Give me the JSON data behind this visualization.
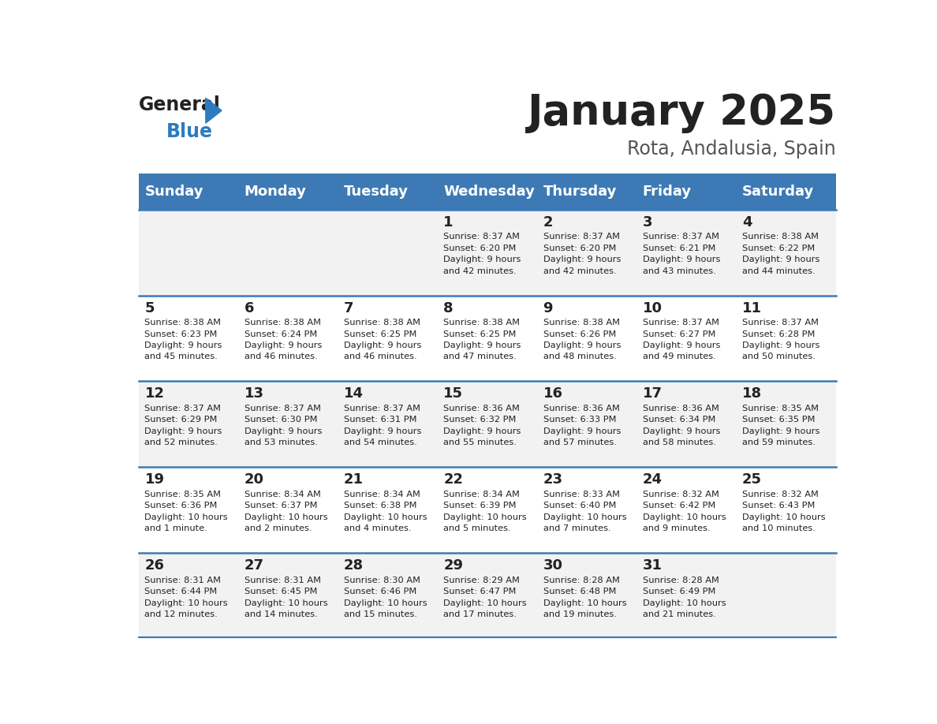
{
  "title": "January 2025",
  "subtitle": "Rota, Andalusia, Spain",
  "days_of_week": [
    "Sunday",
    "Monday",
    "Tuesday",
    "Wednesday",
    "Thursday",
    "Friday",
    "Saturday"
  ],
  "header_bg": "#3d7ab5",
  "header_text_color": "#ffffff",
  "row_bg_odd": "#f2f2f2",
  "row_bg_even": "#ffffff",
  "divider_color": "#3d7ab5",
  "text_color": "#222222",
  "title_color": "#222222",
  "subtitle_color": "#555555",
  "logo_general_color": "#222222",
  "logo_blue_color": "#2d7bbf",
  "calendar": [
    [
      {
        "day": null,
        "info": null
      },
      {
        "day": null,
        "info": null
      },
      {
        "day": null,
        "info": null
      },
      {
        "day": 1,
        "info": "Sunrise: 8:37 AM\nSunset: 6:20 PM\nDaylight: 9 hours\nand 42 minutes."
      },
      {
        "day": 2,
        "info": "Sunrise: 8:37 AM\nSunset: 6:20 PM\nDaylight: 9 hours\nand 42 minutes."
      },
      {
        "day": 3,
        "info": "Sunrise: 8:37 AM\nSunset: 6:21 PM\nDaylight: 9 hours\nand 43 minutes."
      },
      {
        "day": 4,
        "info": "Sunrise: 8:38 AM\nSunset: 6:22 PM\nDaylight: 9 hours\nand 44 minutes."
      }
    ],
    [
      {
        "day": 5,
        "info": "Sunrise: 8:38 AM\nSunset: 6:23 PM\nDaylight: 9 hours\nand 45 minutes."
      },
      {
        "day": 6,
        "info": "Sunrise: 8:38 AM\nSunset: 6:24 PM\nDaylight: 9 hours\nand 46 minutes."
      },
      {
        "day": 7,
        "info": "Sunrise: 8:38 AM\nSunset: 6:25 PM\nDaylight: 9 hours\nand 46 minutes."
      },
      {
        "day": 8,
        "info": "Sunrise: 8:38 AM\nSunset: 6:25 PM\nDaylight: 9 hours\nand 47 minutes."
      },
      {
        "day": 9,
        "info": "Sunrise: 8:38 AM\nSunset: 6:26 PM\nDaylight: 9 hours\nand 48 minutes."
      },
      {
        "day": 10,
        "info": "Sunrise: 8:37 AM\nSunset: 6:27 PM\nDaylight: 9 hours\nand 49 minutes."
      },
      {
        "day": 11,
        "info": "Sunrise: 8:37 AM\nSunset: 6:28 PM\nDaylight: 9 hours\nand 50 minutes."
      }
    ],
    [
      {
        "day": 12,
        "info": "Sunrise: 8:37 AM\nSunset: 6:29 PM\nDaylight: 9 hours\nand 52 minutes."
      },
      {
        "day": 13,
        "info": "Sunrise: 8:37 AM\nSunset: 6:30 PM\nDaylight: 9 hours\nand 53 minutes."
      },
      {
        "day": 14,
        "info": "Sunrise: 8:37 AM\nSunset: 6:31 PM\nDaylight: 9 hours\nand 54 minutes."
      },
      {
        "day": 15,
        "info": "Sunrise: 8:36 AM\nSunset: 6:32 PM\nDaylight: 9 hours\nand 55 minutes."
      },
      {
        "day": 16,
        "info": "Sunrise: 8:36 AM\nSunset: 6:33 PM\nDaylight: 9 hours\nand 57 minutes."
      },
      {
        "day": 17,
        "info": "Sunrise: 8:36 AM\nSunset: 6:34 PM\nDaylight: 9 hours\nand 58 minutes."
      },
      {
        "day": 18,
        "info": "Sunrise: 8:35 AM\nSunset: 6:35 PM\nDaylight: 9 hours\nand 59 minutes."
      }
    ],
    [
      {
        "day": 19,
        "info": "Sunrise: 8:35 AM\nSunset: 6:36 PM\nDaylight: 10 hours\nand 1 minute."
      },
      {
        "day": 20,
        "info": "Sunrise: 8:34 AM\nSunset: 6:37 PM\nDaylight: 10 hours\nand 2 minutes."
      },
      {
        "day": 21,
        "info": "Sunrise: 8:34 AM\nSunset: 6:38 PM\nDaylight: 10 hours\nand 4 minutes."
      },
      {
        "day": 22,
        "info": "Sunrise: 8:34 AM\nSunset: 6:39 PM\nDaylight: 10 hours\nand 5 minutes."
      },
      {
        "day": 23,
        "info": "Sunrise: 8:33 AM\nSunset: 6:40 PM\nDaylight: 10 hours\nand 7 minutes."
      },
      {
        "day": 24,
        "info": "Sunrise: 8:32 AM\nSunset: 6:42 PM\nDaylight: 10 hours\nand 9 minutes."
      },
      {
        "day": 25,
        "info": "Sunrise: 8:32 AM\nSunset: 6:43 PM\nDaylight: 10 hours\nand 10 minutes."
      }
    ],
    [
      {
        "day": 26,
        "info": "Sunrise: 8:31 AM\nSunset: 6:44 PM\nDaylight: 10 hours\nand 12 minutes."
      },
      {
        "day": 27,
        "info": "Sunrise: 8:31 AM\nSunset: 6:45 PM\nDaylight: 10 hours\nand 14 minutes."
      },
      {
        "day": 28,
        "info": "Sunrise: 8:30 AM\nSunset: 6:46 PM\nDaylight: 10 hours\nand 15 minutes."
      },
      {
        "day": 29,
        "info": "Sunrise: 8:29 AM\nSunset: 6:47 PM\nDaylight: 10 hours\nand 17 minutes."
      },
      {
        "day": 30,
        "info": "Sunrise: 8:28 AM\nSunset: 6:48 PM\nDaylight: 10 hours\nand 19 minutes."
      },
      {
        "day": 31,
        "info": "Sunrise: 8:28 AM\nSunset: 6:49 PM\nDaylight: 10 hours\nand 21 minutes."
      },
      {
        "day": null,
        "info": null
      }
    ]
  ]
}
